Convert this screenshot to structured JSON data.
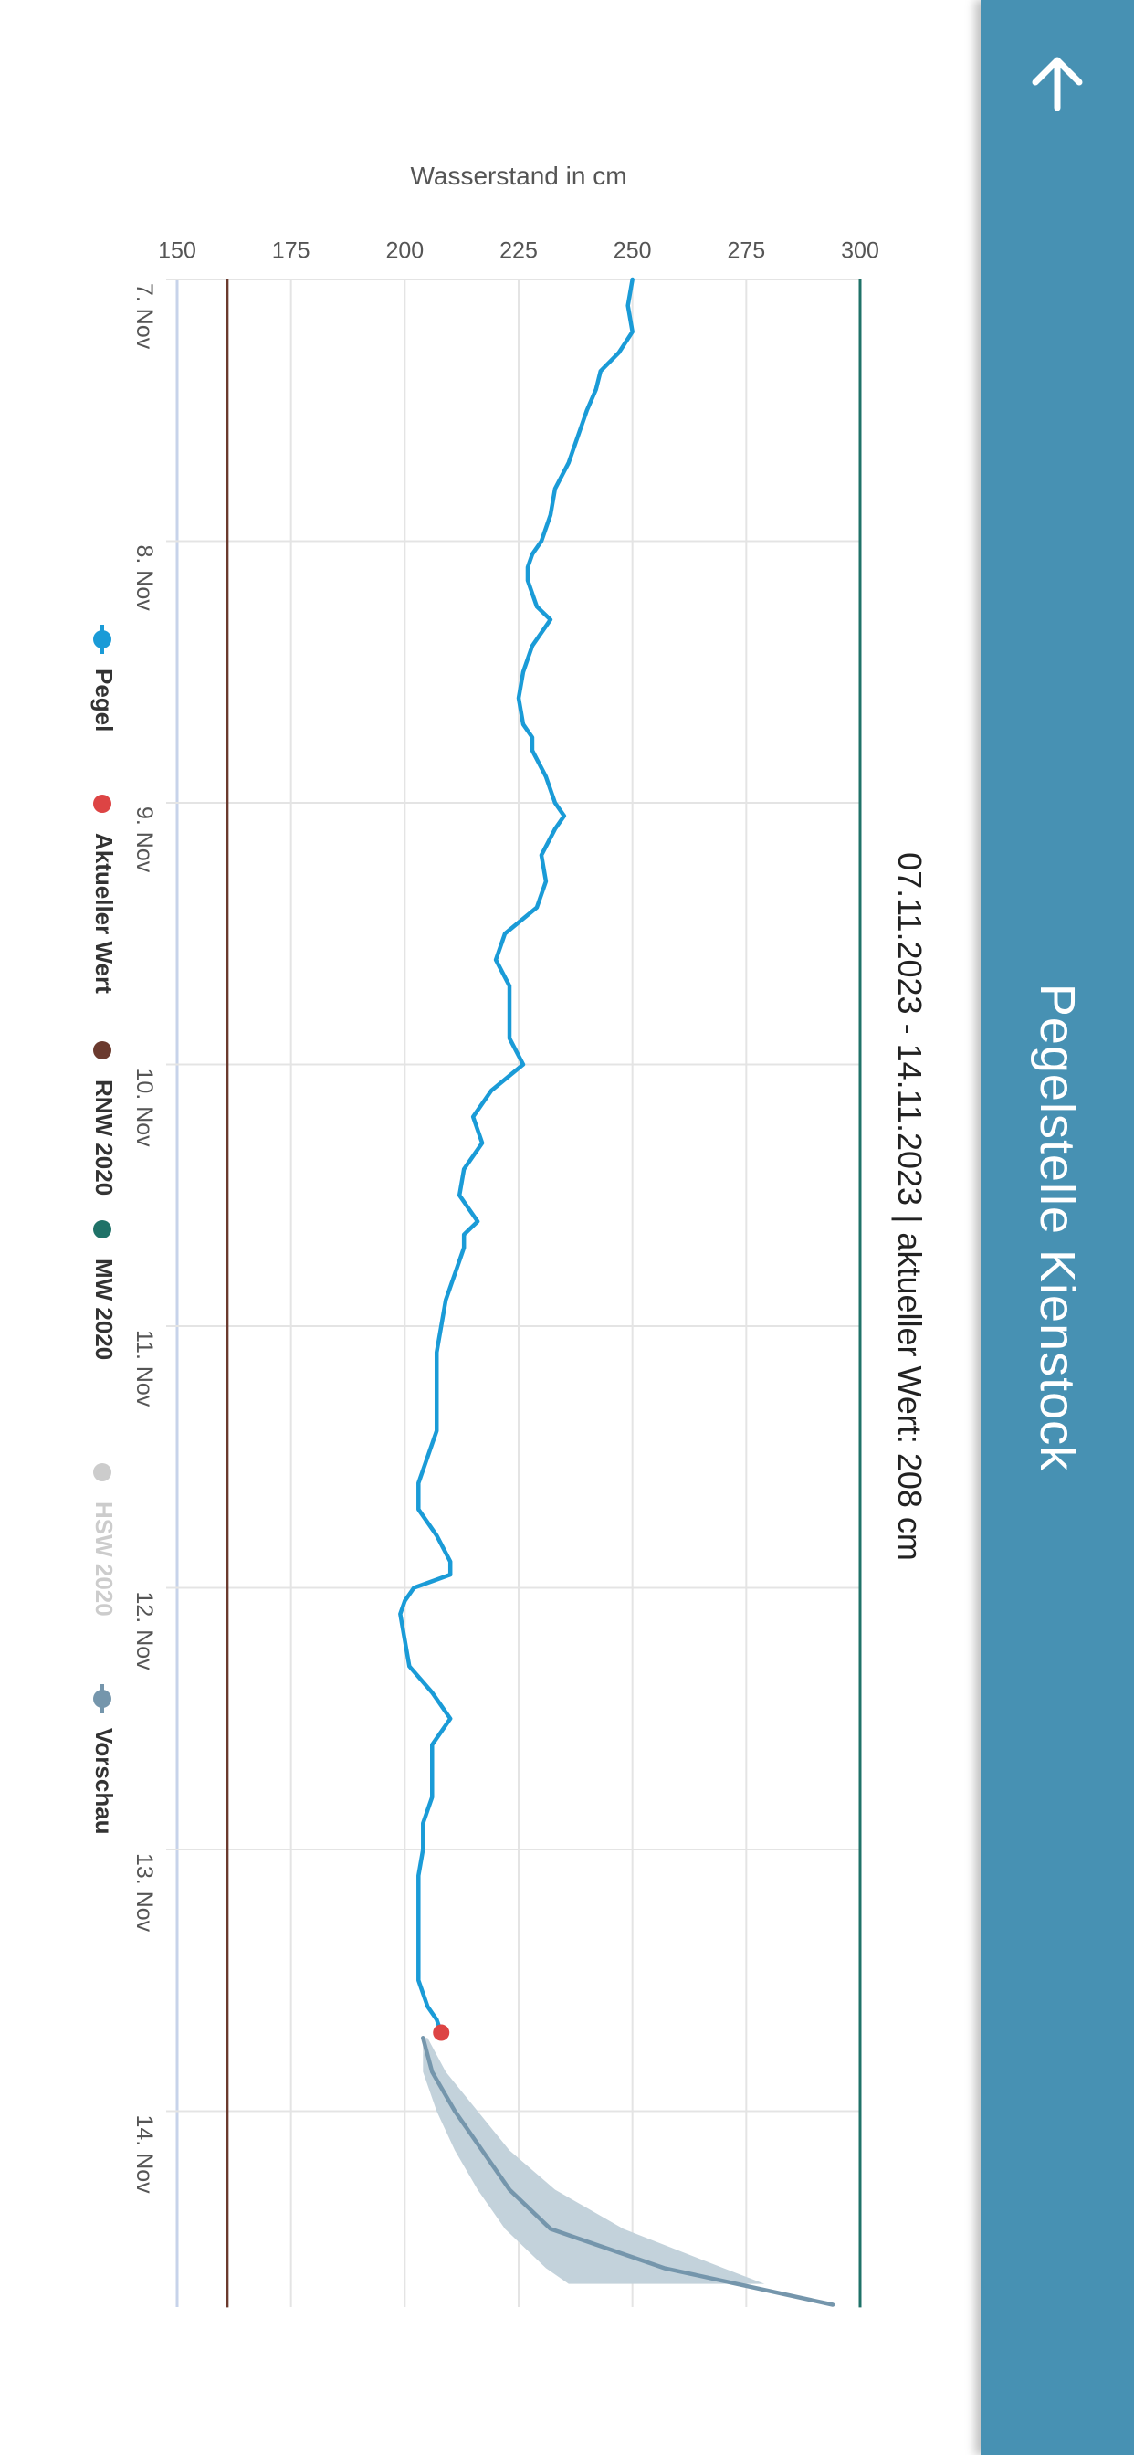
{
  "header": {
    "title": "Pegelstelle Kienstock",
    "background": "#4791b3",
    "back_icon": "arrow-left-icon"
  },
  "chart_data": {
    "type": "line",
    "subtitle": "07.11.2023 - 14.11.2023 | aktueller Wert: 208 cm",
    "ylabel": "Wasserstand in cm",
    "xlabel": "",
    "ylim": [
      150,
      300
    ],
    "yticks": [
      150,
      175,
      200,
      225,
      250,
      275,
      300
    ],
    "xlim": [
      0,
      7.75
    ],
    "xticks": [
      {
        "value": 0,
        "label": "7. Nov"
      },
      {
        "value": 1,
        "label": "8. Nov"
      },
      {
        "value": 2,
        "label": "9. Nov"
      },
      {
        "value": 3,
        "label": "10. Nov"
      },
      {
        "value": 4,
        "label": "11. Nov"
      },
      {
        "value": 5,
        "label": "12. Nov"
      },
      {
        "value": 6,
        "label": "13. Nov"
      },
      {
        "value": 7,
        "label": "14. Nov"
      }
    ],
    "grid": true,
    "series": [
      {
        "name": "Pegel",
        "type": "line",
        "color": "#1a9bd7",
        "points": [
          [
            0.0,
            250
          ],
          [
            0.1,
            249
          ],
          [
            0.2,
            250
          ],
          [
            0.28,
            247
          ],
          [
            0.35,
            243
          ],
          [
            0.42,
            242
          ],
          [
            0.5,
            240
          ],
          [
            0.6,
            238
          ],
          [
            0.7,
            236
          ],
          [
            0.8,
            233
          ],
          [
            0.9,
            232
          ],
          [
            1.0,
            230
          ],
          [
            1.05,
            228
          ],
          [
            1.1,
            227
          ],
          [
            1.15,
            227
          ],
          [
            1.25,
            229
          ],
          [
            1.3,
            232
          ],
          [
            1.4,
            228
          ],
          [
            1.5,
            226
          ],
          [
            1.6,
            225
          ],
          [
            1.7,
            226
          ],
          [
            1.75,
            228
          ],
          [
            1.8,
            228
          ],
          [
            1.9,
            231
          ],
          [
            2.0,
            233
          ],
          [
            2.05,
            235
          ],
          [
            2.1,
            233
          ],
          [
            2.2,
            230
          ],
          [
            2.3,
            231
          ],
          [
            2.4,
            229
          ],
          [
            2.5,
            222
          ],
          [
            2.6,
            220
          ],
          [
            2.7,
            223
          ],
          [
            2.8,
            223
          ],
          [
            2.9,
            223
          ],
          [
            3.0,
            226
          ],
          [
            3.1,
            219
          ],
          [
            3.2,
            215
          ],
          [
            3.3,
            217
          ],
          [
            3.4,
            213
          ],
          [
            3.5,
            212
          ],
          [
            3.6,
            216
          ],
          [
            3.65,
            213
          ],
          [
            3.7,
            213
          ],
          [
            3.8,
            211
          ],
          [
            3.9,
            209
          ],
          [
            4.0,
            208
          ],
          [
            4.1,
            207
          ],
          [
            4.2,
            207
          ],
          [
            4.3,
            207
          ],
          [
            4.4,
            207
          ],
          [
            4.5,
            205
          ],
          [
            4.6,
            203
          ],
          [
            4.7,
            203
          ],
          [
            4.8,
            207
          ],
          [
            4.9,
            210
          ],
          [
            4.95,
            210
          ],
          [
            5.0,
            202
          ],
          [
            5.05,
            200
          ],
          [
            5.1,
            199
          ],
          [
            5.2,
            200
          ],
          [
            5.3,
            201
          ],
          [
            5.4,
            206
          ],
          [
            5.5,
            210
          ],
          [
            5.6,
            206
          ],
          [
            5.7,
            206
          ],
          [
            5.8,
            206
          ],
          [
            5.9,
            204
          ],
          [
            6.0,
            204
          ],
          [
            6.1,
            203
          ],
          [
            6.2,
            203
          ],
          [
            6.3,
            203
          ],
          [
            6.4,
            203
          ],
          [
            6.5,
            203
          ],
          [
            6.6,
            205
          ],
          [
            6.65,
            207
          ],
          [
            6.7,
            208
          ]
        ]
      },
      {
        "name": "Aktueller Wert",
        "type": "point",
        "color": "#dd4444",
        "points": [
          [
            6.7,
            208
          ]
        ]
      },
      {
        "name": "RNW 2020",
        "type": "hline",
        "color": "#6b3a2e",
        "value": 161
      },
      {
        "name": "MW 2020",
        "type": "hline",
        "color": "#1f7268",
        "value": 300
      },
      {
        "name": "HSW 2020",
        "type": "hidden",
        "color": "#cccccc"
      },
      {
        "name": "Vorschau",
        "type": "line",
        "color": "#7596ac",
        "points": [
          [
            6.72,
            204
          ],
          [
            6.85,
            206
          ],
          [
            7.0,
            211
          ],
          [
            7.15,
            217
          ],
          [
            7.3,
            223
          ],
          [
            7.45,
            232
          ],
          [
            7.6,
            257
          ],
          [
            7.74,
            294
          ]
        ],
        "band": [
          [
            6.72,
            204,
            205
          ],
          [
            6.85,
            204,
            209
          ],
          [
            7.0,
            207,
            216
          ],
          [
            7.15,
            211,
            223
          ],
          [
            7.3,
            216,
            233
          ],
          [
            7.45,
            222,
            248
          ],
          [
            7.6,
            231,
            270
          ],
          [
            7.66,
            236,
            279
          ]
        ],
        "band_color": "#c3d2db"
      }
    ],
    "legend": {
      "placement": "bottom",
      "items": [
        {
          "label": "Pegel",
          "color": "#1a9bd7",
          "symbol": "line-marker",
          "active": true
        },
        {
          "label": "Aktueller Wert",
          "color": "#dd4444",
          "symbol": "marker",
          "active": true
        },
        {
          "label": "RNW 2020",
          "color": "#6b3a2e",
          "symbol": "marker",
          "active": true
        },
        {
          "label": "MW 2020",
          "color": "#1f7268",
          "symbol": "marker",
          "active": true
        },
        {
          "label": "HSW 2020",
          "color": "#cccccc",
          "symbol": "marker",
          "active": false
        },
        {
          "label": "Vorschau",
          "color": "#7596ac",
          "symbol": "line-marker",
          "active": true
        }
      ]
    }
  }
}
